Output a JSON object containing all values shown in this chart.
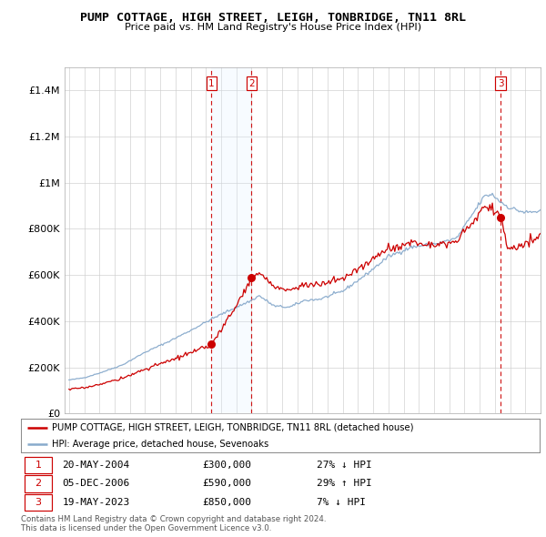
{
  "title": "PUMP COTTAGE, HIGH STREET, LEIGH, TONBRIDGE, TN11 8RL",
  "subtitle": "Price paid vs. HM Land Registry's House Price Index (HPI)",
  "ylim": [
    0,
    1500000
  ],
  "yticks": [
    0,
    200000,
    400000,
    600000,
    800000,
    1000000,
    1200000,
    1400000
  ],
  "ytick_labels": [
    "£0",
    "£200K",
    "£400K",
    "£600K",
    "£800K",
    "£1M",
    "£1.2M",
    "£1.4M"
  ],
  "t1_x": 2004.37,
  "t2_x": 2007.0,
  "t3_x": 2023.37,
  "t1_price": 300000,
  "t2_price": 590000,
  "t3_price": 850000,
  "transaction_table": [
    {
      "num": "1",
      "date": "20-MAY-2004",
      "price": "£300,000",
      "hpi": "27% ↓ HPI"
    },
    {
      "num": "2",
      "date": "05-DEC-2006",
      "price": "£590,000",
      "hpi": "29% ↑ HPI"
    },
    {
      "num": "3",
      "date": "19-MAY-2023",
      "price": "£850,000",
      "hpi": "7% ↓ HPI"
    }
  ],
  "line_color_red": "#cc0000",
  "line_color_blue": "#88aacc",
  "vline_color": "#cc0000",
  "shade_color": "#ddeeff",
  "legend_label_red": "PUMP COTTAGE, HIGH STREET, LEIGH, TONBRIDGE, TN11 8RL (detached house)",
  "legend_label_blue": "HPI: Average price, detached house, Sevenoaks",
  "footer1": "Contains HM Land Registry data © Crown copyright and database right 2024.",
  "footer2": "This data is licensed under the Open Government Licence v3.0.",
  "xmin": 1994.7,
  "xmax": 2026.0
}
